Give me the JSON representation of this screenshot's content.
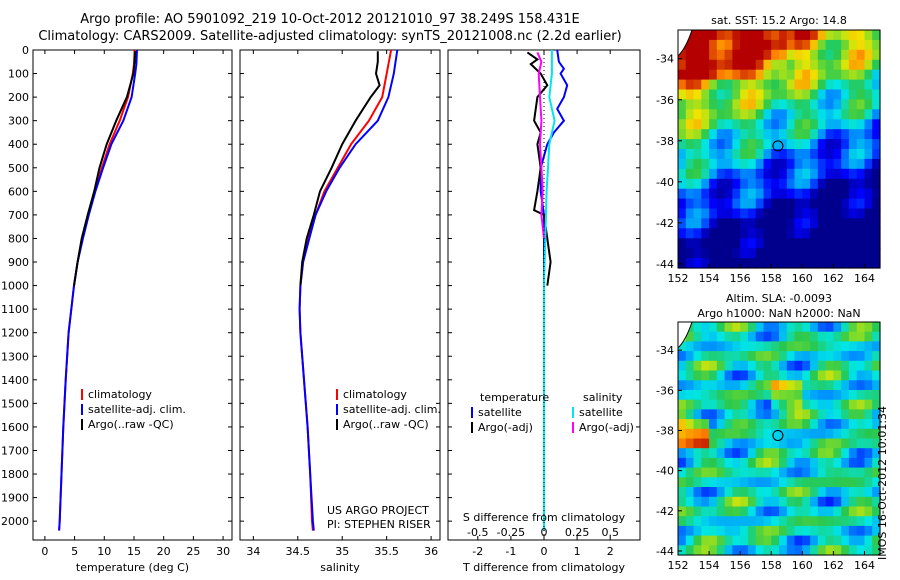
{
  "header": {
    "line1": "Argo profile: AO 5901092_219 10-Oct-2012 20121010_97 38.249S 158.431E",
    "line2": "Climatology: CARS2009. Satellite-adjusted climatology: synTS_20121008.nc (2.2d earlier)"
  },
  "colors": {
    "climatology": "#ff0000",
    "satellite": "#0000ff",
    "argo": "#000000",
    "sat_salinity": "#00e5ee",
    "argo_adj_salinity": "#ff00ff"
  },
  "chart_data": [
    {
      "type": "line",
      "title": "",
      "xlabel": "temperature (deg C)",
      "xticks": [
        0,
        5,
        10,
        15,
        20,
        25,
        30
      ],
      "xlim": [
        -2,
        31.5
      ],
      "ylim": [
        0,
        2080
      ],
      "yticks": [
        0,
        100,
        200,
        300,
        400,
        500,
        600,
        700,
        800,
        900,
        1000,
        1100,
        1200,
        1300,
        1400,
        1500,
        1600,
        1700,
        1800,
        1900,
        2000
      ],
      "legend": [
        "climatology",
        "satellite-adj. clim.",
        "Argo(..raw -QC)"
      ],
      "series": [
        {
          "name": "climatology",
          "depth": [
            0,
            60,
            100,
            200,
            300,
            400,
            500,
            600,
            700,
            800,
            900,
            1000,
            1200,
            1400,
            1600,
            1800,
            2000,
            2040
          ],
          "values": [
            15.1,
            15.0,
            14.8,
            14.0,
            12.6,
            10.9,
            9.6,
            8.4,
            7.3,
            6.3,
            5.5,
            4.9,
            4.0,
            3.5,
            3.1,
            2.8,
            2.5,
            2.4
          ]
        },
        {
          "name": "satellite-adj. clim.",
          "depth": [
            0,
            60,
            100,
            200,
            300,
            400,
            500,
            600,
            700,
            800,
            900,
            1000,
            1200,
            1400,
            1600,
            1800,
            2000,
            2040
          ],
          "values": [
            15.5,
            15.4,
            15.2,
            14.6,
            13.2,
            11.2,
            9.8,
            8.5,
            7.4,
            6.4,
            5.5,
            4.9,
            4.0,
            3.5,
            3.1,
            2.8,
            2.5,
            2.4
          ]
        },
        {
          "name": "Argo(..raw -QC)",
          "depth": [
            5,
            50,
            100,
            200,
            300,
            400,
            500,
            600,
            700,
            800,
            900,
            1000
          ],
          "values": [
            15.2,
            15.1,
            14.9,
            13.8,
            12.0,
            10.4,
            9.2,
            8.3,
            7.2,
            6.2,
            5.5,
            4.9
          ]
        }
      ]
    },
    {
      "type": "line",
      "title": "",
      "xlabel": "salinity",
      "xticks": [
        34,
        34.5,
        35,
        35.5,
        36
      ],
      "xlim": [
        33.85,
        36.1
      ],
      "ylim": [
        0,
        2080
      ],
      "legend": [
        "climatology",
        "satellite-adj. clim.",
        "Argo(..raw -QC)"
      ],
      "annotation": [
        "US ARGO PROJECT",
        "PI: STEPHEN RISER"
      ],
      "series": [
        {
          "name": "climatology",
          "depth": [
            0,
            100,
            200,
            300,
            400,
            500,
            600,
            700,
            800,
            900,
            1000,
            1100,
            1200,
            1300,
            1400,
            1600,
            1800,
            2000,
            2040
          ],
          "values": [
            35.55,
            35.5,
            35.45,
            35.3,
            35.1,
            34.95,
            34.8,
            34.7,
            34.62,
            34.56,
            34.53,
            34.52,
            34.53,
            34.55,
            34.57,
            34.61,
            34.64,
            34.66,
            34.67
          ]
        },
        {
          "name": "satellite-adj. clim.",
          "depth": [
            0,
            100,
            200,
            300,
            400,
            500,
            600,
            700,
            800,
            900,
            1000,
            1100,
            1200,
            1300,
            1400,
            1600,
            1800,
            2000,
            2040
          ],
          "values": [
            35.62,
            35.58,
            35.52,
            35.4,
            35.15,
            34.97,
            34.82,
            34.7,
            34.63,
            34.56,
            34.53,
            34.52,
            34.53,
            34.55,
            34.57,
            34.61,
            34.64,
            34.67,
            34.68
          ]
        },
        {
          "name": "Argo(..raw -QC)",
          "depth": [
            5,
            50,
            100,
            150,
            200,
            300,
            400,
            500,
            600,
            700,
            800,
            900,
            1000
          ],
          "values": [
            35.4,
            35.4,
            35.38,
            35.42,
            35.32,
            35.15,
            35.0,
            34.88,
            34.75,
            34.68,
            34.6,
            34.55,
            34.53
          ]
        }
      ]
    },
    {
      "type": "line",
      "title": "",
      "xlabel": "T difference from climatology",
      "xlabel_top": "S difference from climatology",
      "xticks": [
        -2,
        -1,
        0,
        1,
        2
      ],
      "xticks_top": [
        -0.5,
        -0.25,
        0,
        0.25,
        0.5
      ],
      "xlim": [
        -2.9,
        2.9
      ],
      "ylim": [
        0,
        2080
      ],
      "legend": {
        "temperature_title": "temperature",
        "salinity_title": "salinity",
        "items": [
          "satellite",
          "Argo(-adj)",
          "satellite",
          "Argo(-adj)"
        ]
      },
      "series": [
        {
          "name": "temperature satellite",
          "depth": [
            0,
            50,
            80,
            100,
            150,
            200,
            250,
            300,
            350,
            400,
            500,
            600,
            700,
            800,
            1000,
            1200,
            1500,
            2040
          ],
          "values": [
            0.4,
            0.45,
            0.6,
            0.5,
            0.7,
            0.6,
            0.4,
            0.6,
            0.3,
            0.1,
            -0.1,
            -0.1,
            0,
            0,
            0,
            0,
            0,
            0
          ]
        },
        {
          "name": "temperature Argo(-adj)",
          "depth": [
            10,
            40,
            60,
            100,
            150,
            200,
            300,
            350,
            400,
            500,
            600,
            680,
            700,
            800,
            900,
            1000
          ],
          "values": [
            -0.5,
            -0.2,
            -0.4,
            -0.1,
            0.1,
            -0.2,
            -0.3,
            -0.1,
            -0.2,
            -0.1,
            -0.2,
            -0.3,
            0.0,
            0.1,
            0.2,
            0.1
          ]
        },
        {
          "name": "salinity satellite",
          "depth": [
            0,
            100,
            200,
            300,
            400,
            500,
            600,
            800,
            1000,
            1200,
            1500,
            2040
          ],
          "values": [
            0.06,
            0.06,
            0.04,
            0.08,
            0.04,
            0.03,
            0.02,
            0.01,
            0.0,
            0.0,
            0.0,
            0.0
          ]
        },
        {
          "name": "salinity Argo(-adj)",
          "depth": [
            10,
            50,
            100,
            200,
            300,
            400,
            500,
            600,
            700,
            800
          ],
          "values": [
            -0.05,
            -0.02,
            -0.04,
            -0.03,
            -0.02,
            -0.03,
            -0.02,
            -0.01,
            -0.02,
            0.0
          ]
        }
      ]
    },
    {
      "type": "heatmap",
      "title": "sat. SST: 15.2 Argo: 14.8",
      "xticks": [
        152,
        154,
        156,
        158,
        160,
        162,
        164
      ],
      "yticks": [
        -34,
        -36,
        -38,
        -40,
        -42,
        -44
      ],
      "xlim": [
        152,
        165
      ],
      "ylim": [
        -44.2,
        -32.6
      ],
      "marker": {
        "lon": 158.43,
        "lat": -38.25
      }
    },
    {
      "type": "heatmap",
      "title": "Altim. SLA: -0.0093",
      "subtitle": "Argo h1000: NaN h2000: NaN",
      "xticks": [
        152,
        154,
        156,
        158,
        160,
        162,
        164
      ],
      "yticks": [
        -34,
        -36,
        -38,
        -40,
        -42,
        -44
      ],
      "xlim": [
        152,
        165
      ],
      "ylim": [
        -44.2,
        -32.6
      ],
      "marker": {
        "lon": 158.43,
        "lat": -38.25
      }
    }
  ],
  "stamp": "IMOS 16-Oct-2012 10:01:34"
}
